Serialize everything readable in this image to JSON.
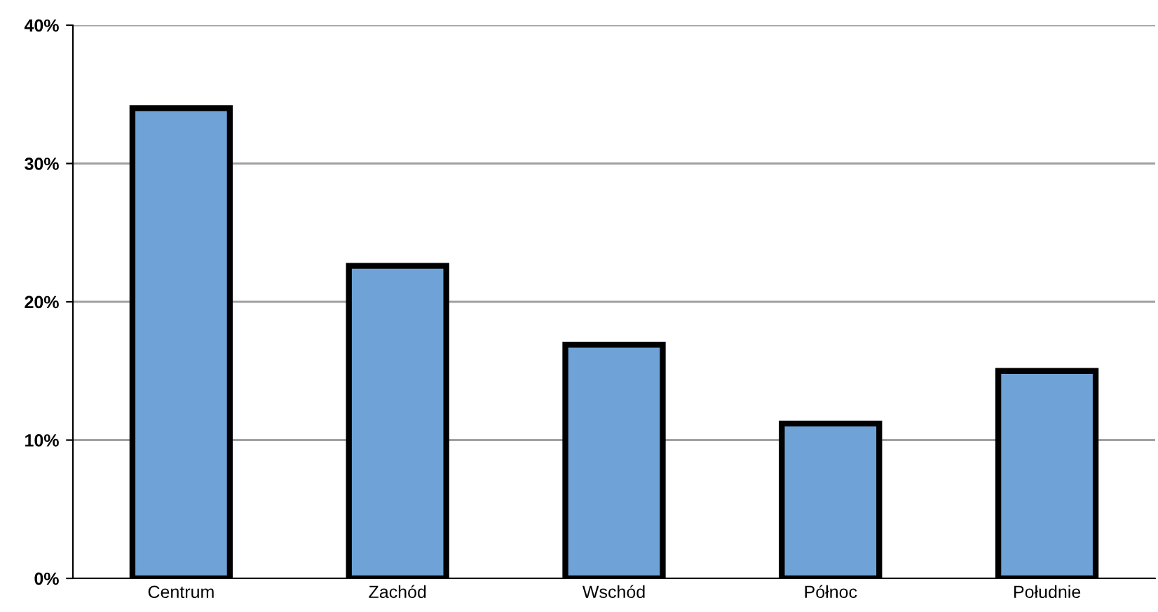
{
  "chart_data": {
    "type": "bar",
    "categories": [
      "Centrum",
      "Zachód",
      "Wschód",
      "Północ",
      "Południe"
    ],
    "values": [
      34,
      22.6,
      16.9,
      11.2,
      15
    ],
    "color": "#6fa3d8",
    "ylim": [
      0,
      40
    ],
    "yticks": [
      {
        "value": 0,
        "label": "0%"
      },
      {
        "value": 10,
        "label": "10%"
      },
      {
        "value": 20,
        "label": "20%"
      },
      {
        "value": 30,
        "label": "30%"
      },
      {
        "value": 40,
        "label": "40%"
      }
    ],
    "grid": "y"
  }
}
